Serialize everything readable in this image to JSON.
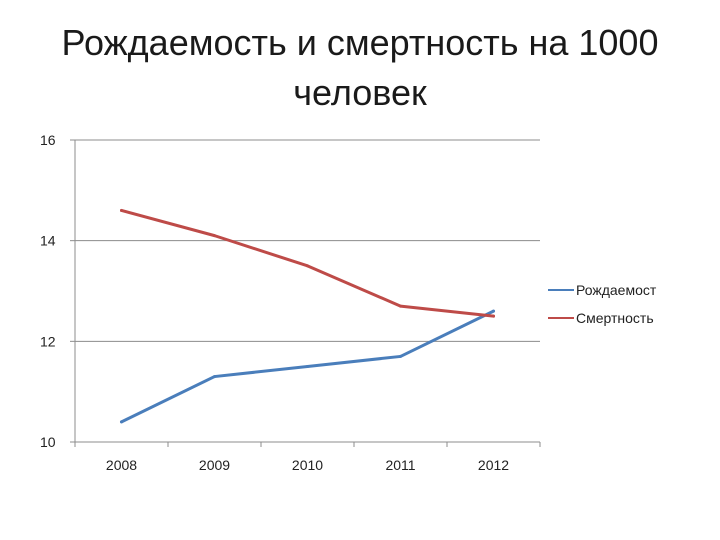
{
  "title": {
    "line1": "Рождаемость и смертность на 1000",
    "line2": "человек"
  },
  "chart_data": {
    "type": "line",
    "categories": [
      "2008",
      "2009",
      "2010",
      "2011",
      "2012"
    ],
    "ylim": [
      10,
      16
    ],
    "yticks": [
      10,
      12,
      14,
      16
    ],
    "grid": true,
    "legend_position": "right",
    "series": [
      {
        "name": "Рождаемост",
        "color": "#4a7ebb",
        "values": [
          10.4,
          11.3,
          11.5,
          11.7,
          12.6
        ]
      },
      {
        "name": "Смертность",
        "color": "#be4b48",
        "values": [
          14.6,
          14.1,
          13.5,
          12.7,
          12.5
        ]
      }
    ]
  }
}
